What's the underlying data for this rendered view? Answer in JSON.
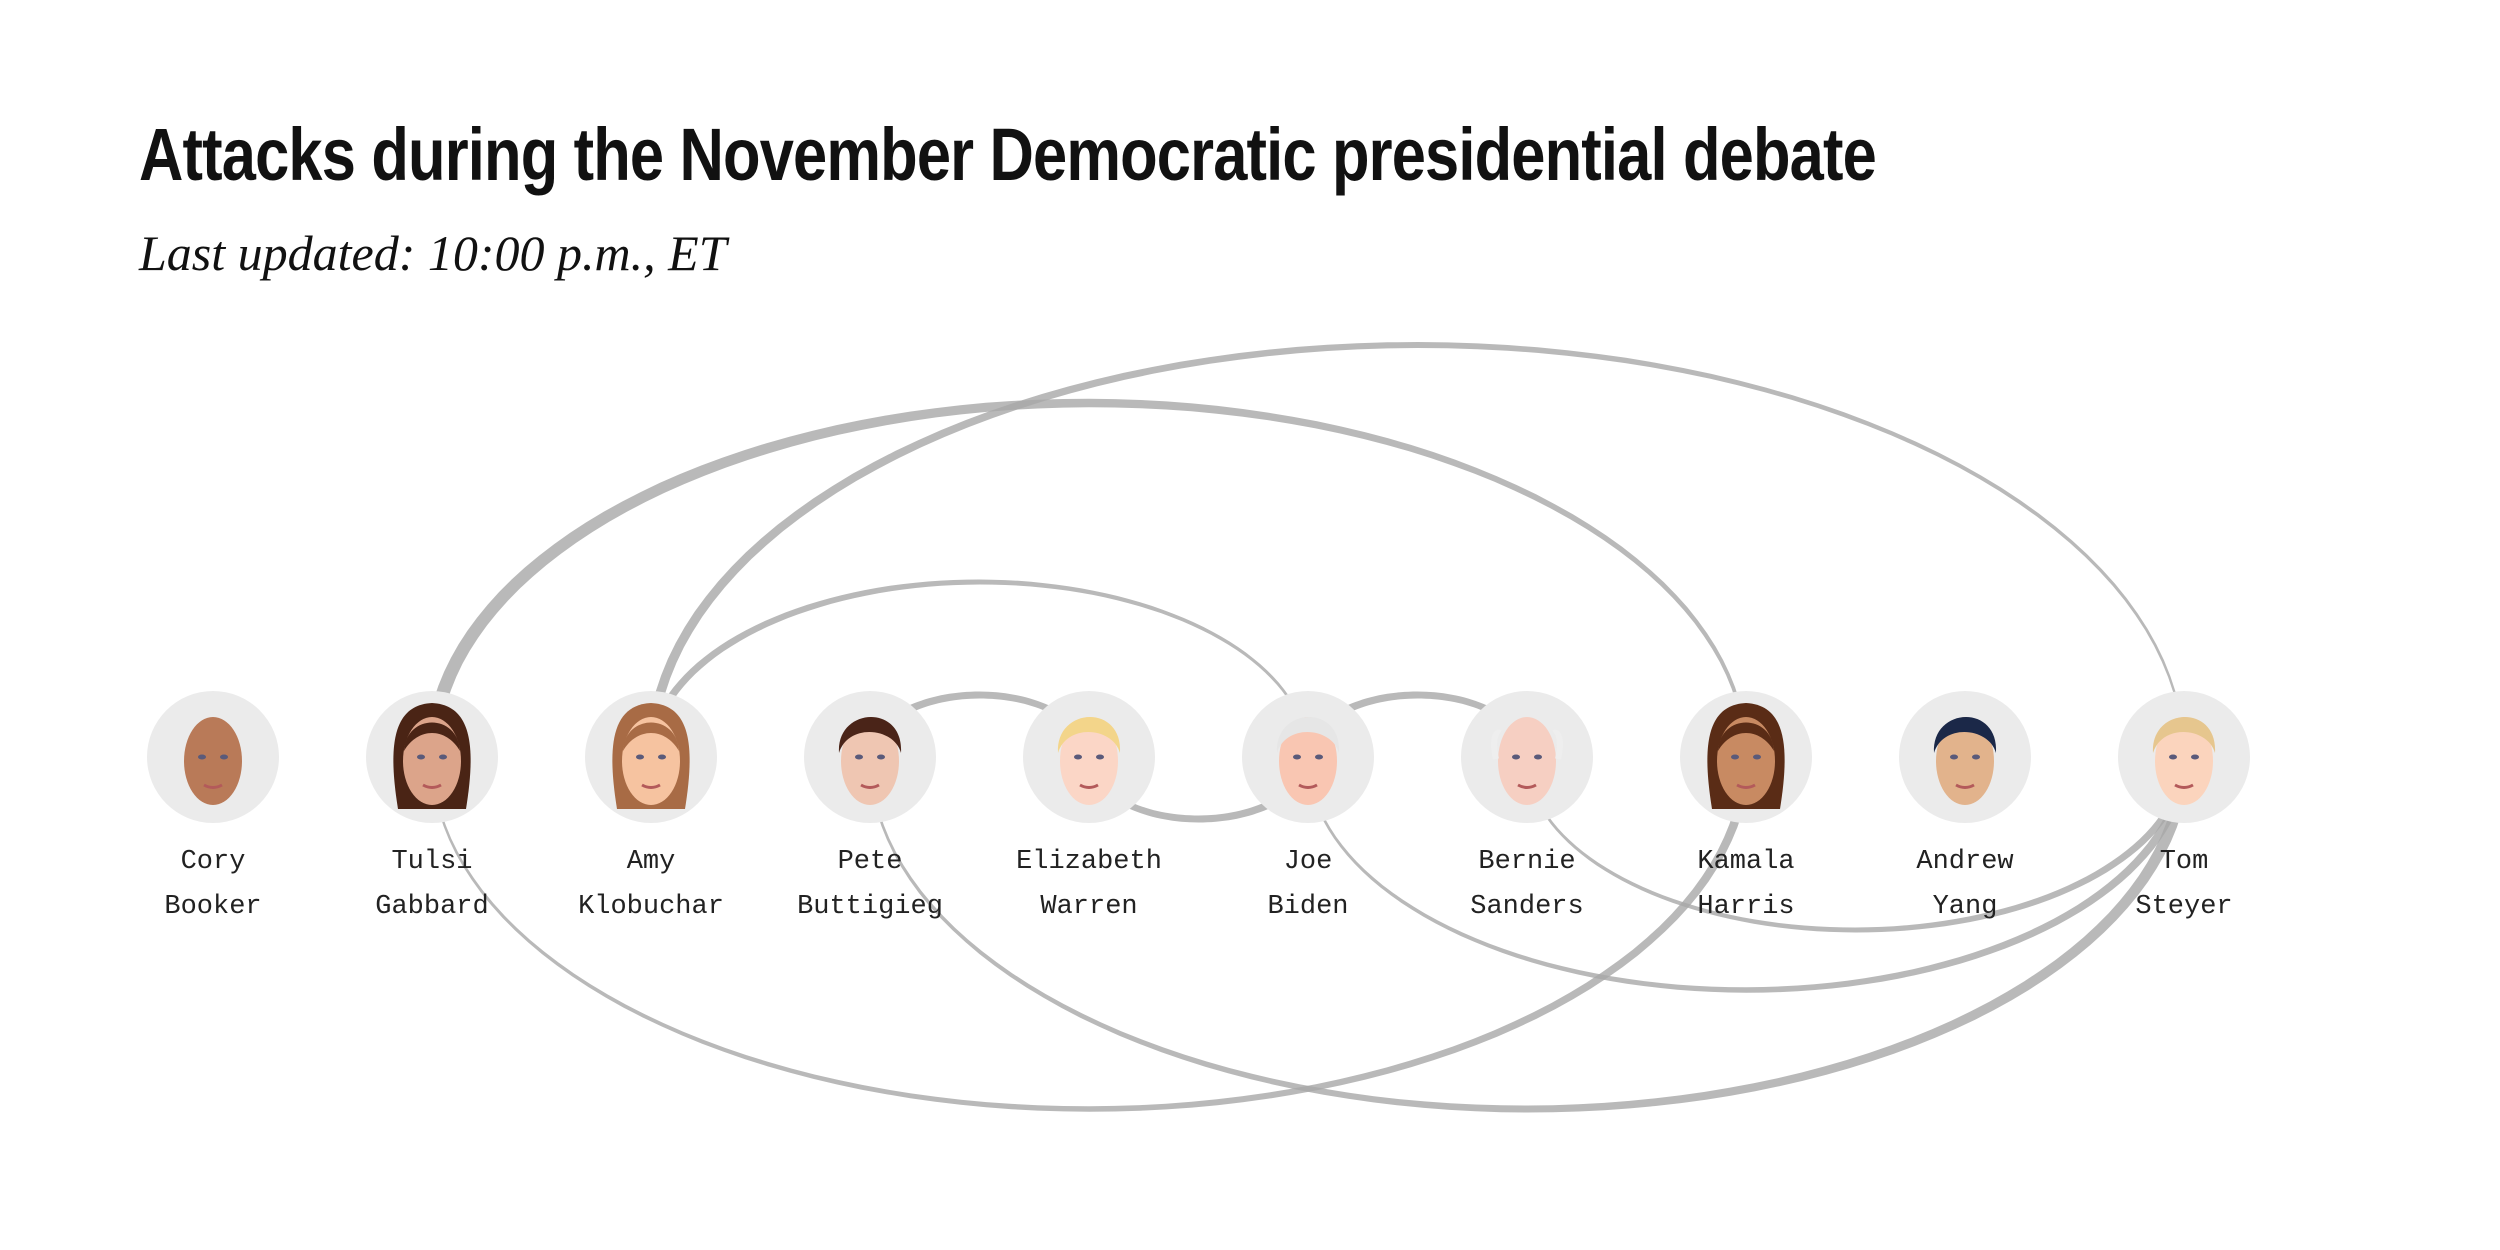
{
  "header": {
    "title": "Attacks during the November Democratic presidential debate",
    "subtitle": "Last updated: 10:00 p.m., ET"
  },
  "diagram": {
    "type": "arc",
    "link_color": "#a8a8a8",
    "circle_color": "#ebebeb",
    "nodes": [
      {
        "id": "booker",
        "first": "Cory",
        "last": "Booker",
        "skin": "#b97a58",
        "hair": "#b97a58",
        "hair_style": "bald"
      },
      {
        "id": "gabbard",
        "first": "Tulsi",
        "last": "Gabbard",
        "skin": "#dca48a",
        "hair": "#4a2415",
        "hair_style": "long"
      },
      {
        "id": "klobuchar",
        "first": "Amy",
        "last": "Klobuchar",
        "skin": "#f6c3a0",
        "hair": "#a86b45",
        "hair_style": "long"
      },
      {
        "id": "buttigieg",
        "first": "Pete",
        "last": "Buttigieg",
        "skin": "#efc6b2",
        "hair": "#4a2418",
        "hair_style": "short"
      },
      {
        "id": "warren",
        "first": "Elizabeth",
        "last": "Warren",
        "skin": "#fbd6c6",
        "hair": "#f3d58a",
        "hair_style": "short"
      },
      {
        "id": "biden",
        "first": "Joe",
        "last": "Biden",
        "skin": "#f9c6b2",
        "hair": "#e6e6e6",
        "hair_style": "short"
      },
      {
        "id": "sanders",
        "first": "Bernie",
        "last": "Sanders",
        "skin": "#f6cfc2",
        "hair": "#eeeeee",
        "hair_style": "bald"
      },
      {
        "id": "harris",
        "first": "Kamala",
        "last": "Harris",
        "skin": "#c88a62",
        "hair": "#5a2c16",
        "hair_style": "long"
      },
      {
        "id": "yang",
        "first": "Andrew",
        "last": "Yang",
        "skin": "#e2b38c",
        "hair": "#1b2848",
        "hair_style": "short"
      },
      {
        "id": "steyer",
        "first": "Tom",
        "last": "Steyer",
        "skin": "#fbd4bd",
        "hair": "#e6c68e",
        "hair_style": "short"
      }
    ],
    "links": [
      {
        "source": "gabbard",
        "target": "harris",
        "side": "above",
        "weight": [
          14,
          3
        ]
      },
      {
        "source": "klobuchar",
        "target": "steyer",
        "side": "above",
        "weight": [
          10,
          2
        ]
      },
      {
        "source": "klobuchar",
        "target": "biden",
        "side": "above",
        "weight": [
          8,
          2
        ]
      },
      {
        "source": "buttigieg",
        "target": "warren",
        "side": "above",
        "weight": [
          8,
          6
        ]
      },
      {
        "source": "biden",
        "target": "sanders",
        "side": "above",
        "weight": [
          8,
          6
        ]
      },
      {
        "source": "warren",
        "target": "biden",
        "side": "below",
        "weight": [
          6,
          8
        ]
      },
      {
        "source": "gabbard",
        "target": "harris",
        "side": "below",
        "weight": [
          2,
          9
        ]
      },
      {
        "source": "buttigieg",
        "target": "steyer",
        "side": "below",
        "weight": [
          2,
          12
        ]
      },
      {
        "source": "biden",
        "target": "steyer",
        "side": "below",
        "weight": [
          2,
          9
        ]
      },
      {
        "source": "sanders",
        "target": "steyer",
        "side": "below",
        "weight": [
          2,
          8
        ]
      }
    ]
  }
}
